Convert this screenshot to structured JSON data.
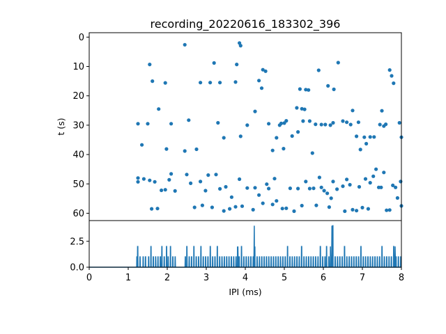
{
  "chart_data": [
    {
      "type": "scatter",
      "title": "recording_20220616_183302_396",
      "ylabel": "t (s)",
      "xlim": [
        0,
        8
      ],
      "ylim": [
        62.5,
        -1.5
      ],
      "y_inverted": true,
      "yticks": [
        "0",
        "10",
        "20",
        "30",
        "40",
        "50",
        "60"
      ],
      "color": "#1f77b4",
      "points": [
        [
          1.25,
          29.5
        ],
        [
          1.35,
          36.7
        ],
        [
          1.5,
          29.5
        ],
        [
          1.55,
          9.3
        ],
        [
          1.62,
          15.0
        ],
        [
          1.78,
          24.5
        ],
        [
          1.95,
          15.6
        ],
        [
          1.98,
          38.1
        ],
        [
          2.1,
          29.5
        ],
        [
          2.45,
          2.6
        ],
        [
          2.45,
          38.8
        ],
        [
          2.55,
          28.3
        ],
        [
          2.75,
          38.2
        ],
        [
          2.85,
          15.5
        ],
        [
          3.1,
          15.5
        ],
        [
          3.2,
          8.8
        ],
        [
          3.3,
          29.2
        ],
        [
          3.35,
          15.5
        ],
        [
          3.45,
          34.3
        ],
        [
          3.75,
          15.3
        ],
        [
          3.78,
          9.3
        ],
        [
          3.85,
          2.0
        ],
        [
          3.88,
          2.9
        ],
        [
          3.88,
          33.8
        ],
        [
          4.05,
          30.0
        ],
        [
          4.25,
          25.3
        ],
        [
          4.35,
          14.8
        ],
        [
          4.42,
          17.4
        ],
        [
          4.45,
          11.1
        ],
        [
          4.52,
          11.6
        ],
        [
          4.6,
          29.5
        ],
        [
          4.7,
          38.6
        ],
        [
          4.8,
          34.3
        ],
        [
          4.88,
          30.0
        ],
        [
          4.92,
          29.4
        ],
        [
          4.98,
          38.0
        ],
        [
          5.0,
          29.3
        ],
        [
          5.05,
          28.5
        ],
        [
          5.2,
          33.7
        ],
        [
          5.32,
          24.1
        ],
        [
          5.35,
          32.3
        ],
        [
          5.4,
          17.7
        ],
        [
          5.45,
          24.4
        ],
        [
          5.48,
          28.6
        ],
        [
          5.52,
          24.6
        ],
        [
          5.55,
          17.9
        ],
        [
          5.62,
          18.0
        ],
        [
          5.65,
          28.6
        ],
        [
          5.72,
          39.5
        ],
        [
          5.8,
          29.7
        ],
        [
          5.88,
          11.3
        ],
        [
          5.95,
          29.8
        ],
        [
          6.05,
          29.8
        ],
        [
          6.12,
          16.6
        ],
        [
          6.18,
          30.0
        ],
        [
          6.25,
          29.2
        ],
        [
          6.27,
          17.8
        ],
        [
          6.38,
          8.7
        ],
        [
          6.5,
          28.6
        ],
        [
          6.6,
          29.0
        ],
        [
          6.7,
          29.8
        ],
        [
          6.75,
          25.0
        ],
        [
          6.9,
          29.0
        ],
        [
          6.85,
          33.8
        ],
        [
          6.95,
          38.3
        ],
        [
          7.05,
          34.1
        ],
        [
          7.1,
          36.3
        ],
        [
          7.2,
          34.0
        ],
        [
          7.3,
          34.0
        ],
        [
          7.45,
          29.8
        ],
        [
          7.5,
          25.1
        ],
        [
          7.55,
          30.3
        ],
        [
          7.6,
          29.7
        ],
        [
          7.7,
          11.2
        ],
        [
          7.75,
          13.2
        ],
        [
          7.8,
          15.7
        ],
        [
          7.95,
          29.2
        ],
        [
          8.0,
          34.1
        ],
        [
          1.25,
          48.0
        ],
        [
          1.25,
          49.3
        ],
        [
          1.4,
          48.3
        ],
        [
          1.55,
          48.8
        ],
        [
          1.6,
          58.5
        ],
        [
          1.68,
          49.3
        ],
        [
          1.75,
          58.4
        ],
        [
          1.85,
          52.2
        ],
        [
          1.95,
          52.0
        ],
        [
          2.05,
          48.6
        ],
        [
          2.1,
          46.6
        ],
        [
          2.2,
          52.4
        ],
        [
          2.5,
          46.8
        ],
        [
          2.6,
          49.8
        ],
        [
          2.7,
          58.0
        ],
        [
          2.85,
          49.2
        ],
        [
          2.9,
          57.3
        ],
        [
          2.98,
          52.3
        ],
        [
          3.05,
          47.0
        ],
        [
          3.15,
          58.0
        ],
        [
          3.25,
          46.8
        ],
        [
          3.35,
          51.7
        ],
        [
          3.45,
          59.2
        ],
        [
          3.5,
          51.0
        ],
        [
          3.6,
          58.5
        ],
        [
          3.65,
          54.5
        ],
        [
          3.75,
          57.8
        ],
        [
          3.85,
          48.4
        ],
        [
          3.92,
          57.6
        ],
        [
          4.05,
          51.4
        ],
        [
          4.2,
          58.8
        ],
        [
          4.25,
          51.3
        ],
        [
          4.35,
          53.8
        ],
        [
          4.45,
          56.6
        ],
        [
          4.55,
          50.1
        ],
        [
          4.6,
          51.6
        ],
        [
          4.7,
          57.0
        ],
        [
          4.75,
          48.2
        ],
        [
          4.8,
          55.8
        ],
        [
          4.95,
          58.4
        ],
        [
          5.05,
          58.3
        ],
        [
          5.15,
          51.5
        ],
        [
          5.25,
          59.3
        ],
        [
          5.35,
          51.6
        ],
        [
          5.45,
          57.4
        ],
        [
          5.55,
          49.2
        ],
        [
          5.65,
          51.6
        ],
        [
          5.75,
          51.5
        ],
        [
          5.82,
          57.3
        ],
        [
          5.9,
          47.8
        ],
        [
          5.95,
          51.2
        ],
        [
          6.02,
          52.3
        ],
        [
          6.1,
          53.2
        ],
        [
          6.15,
          57.9
        ],
        [
          6.2,
          54.9
        ],
        [
          6.25,
          49.2
        ],
        [
          6.35,
          51.8
        ],
        [
          6.5,
          50.8
        ],
        [
          6.55,
          59.3
        ],
        [
          6.6,
          48.5
        ],
        [
          6.68,
          50.3
        ],
        [
          6.75,
          58.8
        ],
        [
          6.85,
          59.1
        ],
        [
          6.92,
          51.0
        ],
        [
          7.0,
          58.1
        ],
        [
          7.08,
          48.3
        ],
        [
          7.15,
          58.5
        ],
        [
          7.2,
          49.6
        ],
        [
          7.28,
          47.4
        ],
        [
          7.35,
          45.0
        ],
        [
          7.42,
          51.2
        ],
        [
          7.48,
          51.2
        ],
        [
          7.55,
          46.1
        ],
        [
          7.62,
          59.0
        ],
        [
          7.7,
          58.9
        ],
        [
          7.78,
          50.5
        ],
        [
          7.85,
          51.2
        ],
        [
          7.9,
          54.8
        ],
        [
          7.98,
          49.2
        ],
        [
          8.0,
          57.5
        ]
      ]
    },
    {
      "type": "line",
      "xlabel": "IPI (ms)",
      "xlim": [
        0,
        8
      ],
      "ylim": [
        0,
        4.5
      ],
      "xticks": [
        "0",
        "1",
        "2",
        "3",
        "4",
        "5",
        "6",
        "7",
        "8"
      ],
      "yticks": [
        "0.0",
        "2.5"
      ],
      "color": "#1f77b4",
      "x_start": 0,
      "x_step": 0.02,
      "values": [
        0,
        0,
        0,
        0,
        0,
        0,
        0,
        0,
        0,
        0,
        0,
        0,
        0,
        0,
        0,
        0,
        0,
        0,
        0,
        0,
        0,
        0,
        0,
        0,
        0,
        0,
        0,
        0,
        0,
        0,
        0,
        0,
        0,
        0,
        0,
        0,
        0,
        0,
        0,
        0,
        0,
        0,
        0,
        0,
        0,
        0,
        0,
        0,
        0,
        0,
        0,
        0,
        0,
        0,
        0,
        0,
        0,
        0,
        0,
        0,
        0,
        0,
        0,
        0,
        0,
        0,
        0,
        0,
        0,
        0,
        0,
        0,
        0,
        0,
        0,
        0,
        0,
        0,
        0,
        0,
        0,
        0,
        0,
        0,
        0,
        0,
        0,
        0,
        0,
        0,
        0,
        0,
        0,
        0,
        0,
        0,
        0,
        0,
        0,
        0,
        0,
        0,
        0,
        0,
        0,
        0,
        0,
        0,
        0,
        0,
        0,
        0,
        0,
        0,
        0,
        0,
        0,
        0,
        0,
        0,
        0,
        0,
        0,
        0,
        0,
        0,
        0,
        0,
        0,
        0,
        0,
        0,
        0,
        0,
        0,
        0,
        0,
        0,
        0,
        0,
        0,
        0,
        0,
        0,
        0,
        0,
        0,
        0,
        0,
        0,
        0,
        0,
        0,
        0,
        0,
        0,
        0,
        0,
        0,
        0,
        0,
        0,
        0,
        0,
        0,
        0,
        0,
        0,
        0,
        0,
        0,
        0,
        0,
        0,
        0,
        0,
        0,
        0,
        0,
        0,
        0,
        0,
        0,
        0,
        0,
        0,
        0,
        0,
        0,
        0,
        0,
        0,
        0,
        0,
        0,
        0,
        0,
        0,
        0,
        0,
        0,
        0,
        0,
        0,
        0,
        0,
        0,
        0,
        0,
        0,
        0,
        0,
        0,
        0,
        0,
        0,
        0,
        0,
        0,
        0,
        0,
        0,
        0,
        0,
        0,
        0,
        0,
        0,
        0,
        0,
        0,
        0,
        0,
        0,
        0,
        0,
        0,
        0,
        0,
        0,
        0,
        0,
        0,
        0,
        0,
        0,
        0,
        0,
        0,
        0,
        0,
        0,
        0,
        0,
        0,
        0,
        0,
        0,
        0,
        0,
        0,
        0,
        0,
        0,
        0,
        0,
        0,
        0,
        0,
        0,
        0,
        0,
        0,
        0,
        0,
        0,
        0,
        0,
        0,
        0,
        0,
        0,
        0,
        0,
        0,
        0,
        0,
        0,
        0,
        0,
        0,
        0,
        0,
        0,
        0,
        0,
        0,
        0,
        0,
        0,
        0,
        0,
        0,
        0,
        0,
        0,
        0,
        0,
        0,
        0,
        0,
        0,
        0,
        0,
        0,
        0,
        0,
        0,
        0,
        0,
        0,
        0,
        0,
        0,
        0,
        0,
        0,
        0,
        0,
        0,
        0,
        0,
        0,
        0,
        0,
        0,
        0,
        0,
        0,
        0,
        0,
        0,
        0,
        0,
        0,
        0,
        0,
        0,
        0,
        0,
        0,
        0,
        0,
        0,
        0,
        0,
        0,
        0,
        0,
        0,
        0,
        0,
        0,
        0,
        0,
        0,
        0,
        0,
        0,
        0,
        0,
        0,
        0,
        0,
        0,
        0,
        0,
        0,
        0,
        0,
        0,
        0,
        0,
        0,
        0,
        0,
        0,
        0,
        0,
        0,
        0,
        0,
        0,
        0,
        0,
        0,
        0,
        0,
        0,
        0,
        0,
        0
      ],
      "events": [
        [
          1.22,
          1
        ],
        [
          1.24,
          2
        ],
        [
          1.3,
          1
        ],
        [
          1.38,
          1
        ],
        [
          1.44,
          1
        ],
        [
          1.52,
          1
        ],
        [
          1.58,
          2
        ],
        [
          1.64,
          1
        ],
        [
          1.7,
          1
        ],
        [
          1.76,
          1
        ],
        [
          1.82,
          1
        ],
        [
          1.86,
          2
        ],
        [
          1.92,
          1
        ],
        [
          1.98,
          2
        ],
        [
          2.02,
          1
        ],
        [
          2.08,
          2
        ],
        [
          2.14,
          1
        ],
        [
          2.2,
          1
        ],
        [
          2.46,
          1
        ],
        [
          2.5,
          2
        ],
        [
          2.56,
          1
        ],
        [
          2.62,
          1
        ],
        [
          2.68,
          2
        ],
        [
          2.74,
          1
        ],
        [
          2.8,
          1
        ],
        [
          2.86,
          2
        ],
        [
          2.92,
          1
        ],
        [
          2.98,
          1
        ],
        [
          3.04,
          1
        ],
        [
          3.1,
          2
        ],
        [
          3.16,
          1
        ],
        [
          3.22,
          1
        ],
        [
          3.28,
          2
        ],
        [
          3.34,
          1
        ],
        [
          3.4,
          1
        ],
        [
          3.46,
          1
        ],
        [
          3.52,
          1
        ],
        [
          3.58,
          1
        ],
        [
          3.64,
          1
        ],
        [
          3.7,
          1
        ],
        [
          3.76,
          1
        ],
        [
          3.8,
          2
        ],
        [
          3.84,
          1
        ],
        [
          3.9,
          2
        ],
        [
          3.96,
          1
        ],
        [
          4.02,
          1
        ],
        [
          4.08,
          1
        ],
        [
          4.14,
          1
        ],
        [
          4.2,
          1
        ],
        [
          4.24,
          2
        ],
        [
          4.3,
          1
        ],
        [
          4.36,
          1
        ],
        [
          4.42,
          1
        ],
        [
          4.48,
          1
        ],
        [
          4.54,
          1
        ],
        [
          4.6,
          1
        ],
        [
          4.66,
          1
        ],
        [
          4.72,
          1
        ],
        [
          4.78,
          1
        ],
        [
          4.84,
          1
        ],
        [
          4.9,
          1
        ],
        [
          4.96,
          1
        ],
        [
          5.02,
          1
        ],
        [
          5.08,
          2
        ],
        [
          5.14,
          1
        ],
        [
          5.2,
          1
        ],
        [
          5.26,
          1
        ],
        [
          5.32,
          1
        ],
        [
          5.38,
          1
        ],
        [
          5.44,
          2
        ],
        [
          5.5,
          1
        ],
        [
          5.56,
          1
        ],
        [
          5.62,
          1
        ],
        [
          5.68,
          1
        ],
        [
          5.74,
          1
        ],
        [
          5.8,
          1
        ],
        [
          5.86,
          1
        ],
        [
          5.92,
          2
        ],
        [
          5.98,
          1
        ],
        [
          6.04,
          1
        ],
        [
          6.08,
          2
        ],
        [
          6.14,
          1
        ],
        [
          6.18,
          1
        ],
        [
          6.24,
          4
        ],
        [
          6.3,
          1
        ],
        [
          6.36,
          1
        ],
        [
          6.42,
          1
        ],
        [
          6.48,
          1
        ],
        [
          6.54,
          2
        ],
        [
          6.6,
          1
        ],
        [
          6.66,
          1
        ],
        [
          6.72,
          1
        ],
        [
          6.78,
          1
        ],
        [
          6.84,
          1
        ],
        [
          6.9,
          1
        ],
        [
          6.96,
          2
        ],
        [
          7.02,
          1
        ],
        [
          7.08,
          1
        ],
        [
          7.14,
          1
        ],
        [
          7.2,
          1
        ],
        [
          7.26,
          1
        ],
        [
          7.32,
          1
        ],
        [
          7.38,
          1
        ],
        [
          7.44,
          1
        ],
        [
          7.5,
          2
        ],
        [
          7.56,
          1
        ],
        [
          7.62,
          1
        ],
        [
          7.68,
          1
        ],
        [
          7.74,
          1
        ],
        [
          7.8,
          2
        ],
        [
          7.86,
          1
        ],
        [
          7.92,
          1
        ],
        [
          7.98,
          1
        ]
      ],
      "peaks": [
        [
          3.81,
          2.0
        ],
        [
          4.23,
          4.0
        ],
        [
          6.22,
          4.0
        ],
        [
          6.18,
          2.0
        ],
        [
          7.84,
          2.0
        ]
      ]
    }
  ]
}
